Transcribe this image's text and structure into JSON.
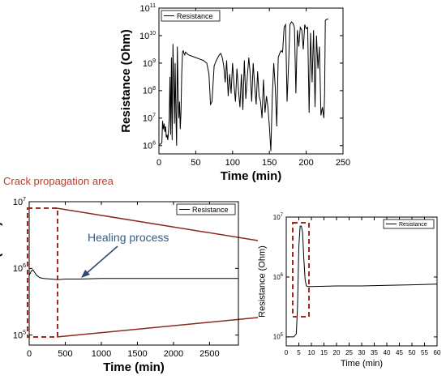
{
  "annotations": {
    "crack_label": "Crack propagation area",
    "healing_label": "Healing process"
  },
  "colors": {
    "line": "#000000",
    "highlight_box": "#a0281e",
    "zoom_lines": "#8b2a1c",
    "annotation_text": "#c0392b",
    "healing_text": "#2e5f8a",
    "arrow": "#2e4a70"
  },
  "chart_data": [
    {
      "id": "top",
      "type": "line",
      "xlabel": "Time (min)",
      "ylabel": "Resistance (Ohm)",
      "xlim": [
        0,
        250
      ],
      "ylim_log10": [
        5.7,
        11
      ],
      "y_scale": "log",
      "xticks": [
        0,
        50,
        100,
        150,
        200,
        250
      ],
      "yticks_exp": [
        6,
        7,
        8,
        9,
        10,
        11
      ],
      "legend": {
        "label": "Resistance",
        "placement": "top-left"
      },
      "series": [
        {
          "name": "Resistance",
          "x": [
            0,
            2,
            4,
            5,
            6,
            7,
            8,
            9,
            10,
            11,
            12,
            13,
            14,
            15,
            16,
            17,
            18,
            19,
            20,
            21,
            22,
            23,
            24,
            25,
            26,
            27,
            28,
            29,
            30,
            31,
            32,
            33,
            34,
            35,
            36,
            38,
            40,
            45,
            50,
            55,
            60,
            65,
            68,
            70,
            72,
            75,
            78,
            80,
            82,
            84,
            86,
            88,
            90,
            92,
            94,
            96,
            98,
            100,
            102,
            104,
            106,
            108,
            110,
            112,
            114,
            116,
            118,
            120,
            122,
            124,
            126,
            128,
            130,
            132,
            134,
            136,
            138,
            140,
            142,
            144,
            146,
            148,
            150,
            152,
            154,
            156,
            158,
            160,
            162,
            164,
            166,
            168,
            170,
            172,
            174,
            176,
            178,
            180,
            182,
            184,
            186,
            188,
            190,
            192,
            194,
            196,
            198,
            200,
            202,
            204,
            206,
            208,
            210,
            212,
            214,
            216,
            218,
            220,
            222,
            224,
            225,
            226,
            228,
            230
          ],
          "log10_values": [
            6.05,
            6.05,
            6.1,
            6.9,
            6.6,
            6.8,
            6.5,
            6.7,
            6.3,
            6.4,
            6.2,
            6.5,
            7.0,
            8.5,
            6.4,
            9.2,
            6.2,
            9.7,
            8.3,
            6.8,
            9.0,
            7.2,
            6.0,
            9.6,
            8.0,
            7.0,
            7.6,
            6.6,
            7.2,
            8.6,
            9.4,
            9.45,
            9.35,
            9.3,
            9.4,
            9.35,
            9.3,
            9.25,
            9.2,
            9.15,
            9.1,
            9.0,
            8.6,
            7.5,
            7.6,
            8.9,
            9.1,
            9.2,
            9.3,
            9.35,
            9.2,
            8.9,
            8.3,
            9.1,
            7.8,
            8.6,
            7.9,
            9.0,
            8.2,
            7.6,
            8.8,
            8.0,
            7.4,
            8.6,
            7.3,
            9.1,
            7.7,
            8.5,
            9.2,
            8.6,
            7.6,
            9.0,
            8.2,
            7.5,
            8.7,
            7.8,
            7.6,
            7.0,
            8.4,
            7.2,
            7.8,
            7.4,
            6.7,
            5.8,
            7.8,
            9.0,
            8.1,
            6.7,
            9.2,
            9.35,
            9.45,
            9.4,
            10.3,
            10.4,
            7.6,
            8.9,
            10.4,
            10.5,
            10.45,
            10.3,
            7.9,
            10.2,
            9.6,
            10.3,
            10.2,
            9.5,
            10.4,
            10.25,
            10.3,
            7.2,
            10.1,
            8.3,
            10.2,
            7.4,
            10.0,
            8.8,
            9.6,
            7.1,
            7.4,
            7.0,
            7.9,
            10.55,
            10.6,
            10.6
          ]
        }
      ]
    },
    {
      "id": "bottom-left",
      "type": "line",
      "xlabel": "Time (min)",
      "ylabel": "Resistance (Ohm)",
      "xlim": [
        0,
        2900
      ],
      "ylim_log10": [
        4.85,
        7
      ],
      "y_scale": "log",
      "xticks": [
        0,
        500,
        1000,
        1500,
        2000,
        2500
      ],
      "yticks_exp": [
        5,
        6,
        7
      ],
      "legend": {
        "label": "Resistance",
        "placement": "top-right"
      },
      "series": [
        {
          "name": "Resistance",
          "x": [
            0,
            30,
            50,
            70,
            100,
            150,
            200,
            300,
            400,
            500,
            700,
            1000,
            1500,
            2000,
            2500,
            2900
          ],
          "log10_values": [
            5.9,
            5.96,
            5.98,
            5.95,
            5.9,
            5.86,
            5.85,
            5.84,
            5.83,
            5.84,
            5.84,
            5.85,
            5.85,
            5.85,
            5.85,
            5.85
          ]
        }
      ]
    },
    {
      "id": "bottom-right",
      "type": "line",
      "xlabel": "Time (min)",
      "ylabel": "Resistance (Ohm)",
      "xlim": [
        0,
        60
      ],
      "ylim_log10": [
        4.85,
        7
      ],
      "y_scale": "log",
      "xticks": [
        0,
        5,
        10,
        15,
        20,
        25,
        30,
        35,
        40,
        45,
        50,
        55,
        60
      ],
      "yticks_exp": [
        5,
        6,
        7
      ],
      "legend": {
        "label": "Resistance",
        "placement": "top-right"
      },
      "series": [
        {
          "name": "Resistance",
          "x": [
            0,
            2,
            3,
            4,
            4.5,
            5,
            5.5,
            6,
            6.5,
            7,
            7.5,
            8,
            9,
            10,
            20,
            30,
            40,
            50,
            60
          ],
          "log10_values": [
            5.0,
            5.0,
            5.0,
            5.05,
            5.5,
            6.5,
            6.85,
            6.85,
            6.75,
            6.3,
            5.95,
            5.85,
            5.84,
            5.84,
            5.85,
            5.85,
            5.86,
            5.87,
            5.88
          ]
        }
      ]
    }
  ]
}
